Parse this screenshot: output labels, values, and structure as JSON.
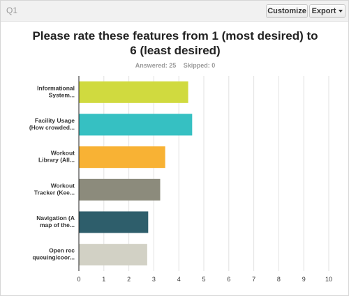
{
  "header": {
    "question_label": "Q1",
    "customize_label": "Customize",
    "export_label": "Export"
  },
  "summary": {
    "answered": "Answered: 25",
    "skipped": "Skipped: 0"
  },
  "colors": {
    "bars": [
      "#d0da3f",
      "#36c0c2",
      "#f8b234",
      "#8c8b7c",
      "#2e5e6b",
      "#d2d1c5"
    ],
    "grid": "#e2e2e2",
    "axis": "#222222"
  },
  "chart_data": {
    "type": "bar",
    "orientation": "horizontal",
    "title": "Please rate these features from 1 (most desired) to 6 (least desired)",
    "categories": [
      [
        "Informational",
        "System..."
      ],
      [
        "Facility Usage",
        "(How crowded..."
      ],
      [
        "Workout",
        "Library (All..."
      ],
      [
        "Workout",
        "Tracker (Kee..."
      ],
      [
        "Navigation (A",
        "map of the..."
      ],
      [
        "Open rec",
        "queuing/coor..."
      ]
    ],
    "values": [
      4.36,
      4.52,
      3.44,
      3.24,
      2.76,
      2.72
    ],
    "xlim": [
      0,
      10
    ],
    "xticks": [
      "0",
      "1",
      "2",
      "3",
      "4",
      "5",
      "6",
      "7",
      "8",
      "9",
      "10"
    ],
    "grid": true
  }
}
